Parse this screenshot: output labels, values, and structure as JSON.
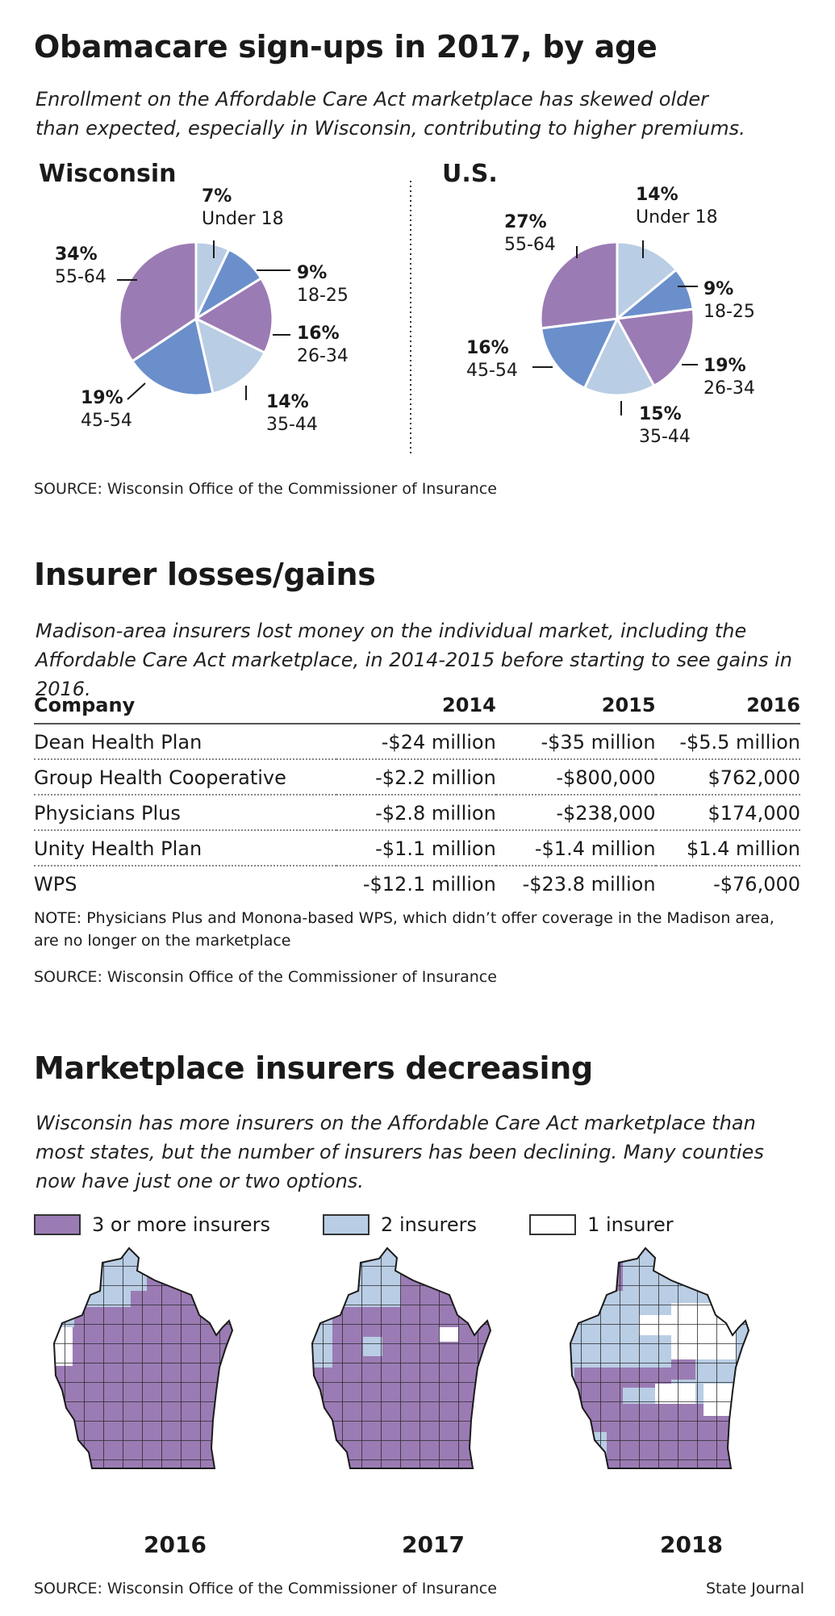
{
  "section1": {
    "title": "Obamacare sign-ups in 2017, by age",
    "dek_line1": "Enrollment on the Affordable Care Act marketplace has skewed older",
    "dek_line2": "than expected, especially in Wisconsin, contributing to higher premiums.",
    "source": "SOURCE: Wisconsin Office of the Commissioner of Insurance"
  },
  "section2": {
    "title": "Insurer losses/gains",
    "dek_line1": "Madison-area insurers lost money on the individual market, including the",
    "dek_line2": "Affordable Care Act marketplace, in 2014-2015 before starting to see gains in 2016.",
    "note_line1": "NOTE: Physicians Plus and Monona-based WPS, which didn’t offer coverage in the Madison area,",
    "note_line2": "are no longer on the marketplace",
    "source": "SOURCE: Wisconsin Office of the Commissioner of Insurance"
  },
  "section3": {
    "title": "Marketplace insurers decreasing",
    "dek_line1": "Wisconsin has more insurers on the Affordable Care Act marketplace than",
    "dek_line2": "most states, but the number of insurers has been declining. Many counties",
    "dek_line3": "now have just one or two options.",
    "legend": [
      {
        "label": "3 or more insurers",
        "color": "#9b7bb4"
      },
      {
        "label": "2 insurers",
        "color": "#b9cde4"
      },
      {
        "label": "1 insurer",
        "color": "#ffffff"
      }
    ],
    "years": [
      "2016",
      "2017",
      "2018"
    ],
    "source": "SOURCE: Wisconsin Office of the Commissioner of Insurance",
    "credit": "State Journal"
  },
  "colors": {
    "purple": "#9b7bb4",
    "blue": "#6b8fcb",
    "light_blue": "#b9cde4"
  },
  "chart_data": [
    {
      "type": "pie",
      "title": "Wisconsin",
      "categories": [
        "Under 18",
        "18-25",
        "26-34",
        "35-44",
        "45-54",
        "55-64"
      ],
      "values": [
        7,
        9,
        16,
        14,
        19,
        34
      ],
      "labels": [
        "7%",
        "9%",
        "16%",
        "14%",
        "19%",
        "34%"
      ],
      "colors": [
        "#b9cde4",
        "#6b8fcb",
        "#9b7bb4",
        "#b9cde4",
        "#6b8fcb",
        "#9b7bb4"
      ]
    },
    {
      "type": "pie",
      "title": "U.S.",
      "categories": [
        "Under 18",
        "18-25",
        "26-34",
        "35-44",
        "45-54",
        "55-64"
      ],
      "values": [
        14,
        9,
        19,
        15,
        16,
        27
      ],
      "labels": [
        "14%",
        "9%",
        "19%",
        "15%",
        "16%",
        "27%"
      ],
      "colors": [
        "#b9cde4",
        "#6b8fcb",
        "#9b7bb4",
        "#b9cde4",
        "#6b8fcb",
        "#9b7bb4"
      ]
    },
    {
      "type": "table",
      "columns": [
        "Company",
        "2014",
        "2015",
        "2016"
      ],
      "rows": [
        [
          "Dean Health Plan",
          "-$24 million",
          "-$35 million",
          "-$5.5 million"
        ],
        [
          "Group Health Cooperative",
          "-$2.2 million",
          "-$800,000",
          "$762,000"
        ],
        [
          "Physicians Plus",
          "-$2.8 million",
          "-$238,000",
          "$174,000"
        ],
        [
          "Unity Health Plan",
          "-$1.1 million",
          "-$1.4 million",
          "$1.4 million"
        ],
        [
          "WPS",
          "-$12.1 million",
          "-$23.8 million",
          "-$76,000"
        ]
      ]
    }
  ]
}
